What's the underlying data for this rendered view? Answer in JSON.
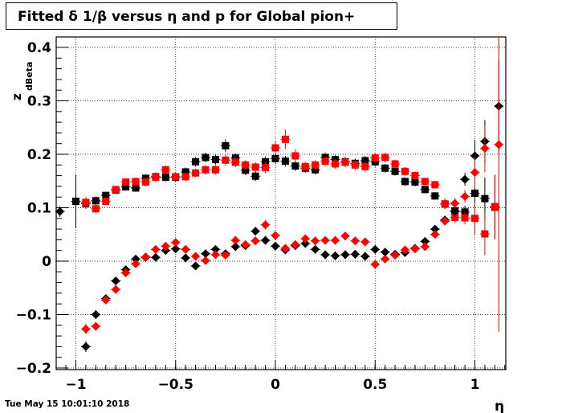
{
  "title": "Fitted δ 1/β versus η and p for Global pion+",
  "footer_timestamp": "Tue May 15 10:01:10 2018",
  "chart_data": {
    "type": "scatter",
    "title": "Fitted δ 1/β versus η and p for Global pion+",
    "xlabel": "η",
    "ylabel": "z",
    "ylabel_subscript": "dBeta",
    "xlim": [
      -1.1,
      1.15
    ],
    "ylim": [
      -0.2,
      0.4
    ],
    "grid": true,
    "x_ticks": [
      {
        "v": -1,
        "label": "−1"
      },
      {
        "v": -0.5,
        "label": "−0.5"
      },
      {
        "v": 0,
        "label": "0"
      },
      {
        "v": 0.5,
        "label": "0.5"
      },
      {
        "v": 1,
        "label": "1"
      }
    ],
    "y_ticks": [
      {
        "v": -0.2,
        "label": "−0.2"
      },
      {
        "v": -0.1,
        "label": "−0.1"
      },
      {
        "v": 0,
        "label": "0"
      },
      {
        "v": 0.1,
        "label": "0.1"
      },
      {
        "v": 0.2,
        "label": "0.2"
      },
      {
        "v": 0.3,
        "label": "0.3"
      },
      {
        "v": 0.4,
        "label": "0.4"
      }
    ],
    "series": [
      {
        "color": "#000000",
        "marker": "square",
        "points": [
          {
            "x": -1.0,
            "y": 0.112,
            "e": 0.05
          },
          {
            "x": -0.95,
            "y": 0.108,
            "e": 0.01
          },
          {
            "x": -0.9,
            "y": 0.113,
            "e": 0.008
          },
          {
            "x": -0.85,
            "y": 0.123,
            "e": 0.007
          },
          {
            "x": -0.8,
            "y": 0.133,
            "e": 0.007
          },
          {
            "x": -0.75,
            "y": 0.139,
            "e": 0.007
          },
          {
            "x": -0.7,
            "y": 0.137,
            "e": 0.007
          },
          {
            "x": -0.65,
            "y": 0.155,
            "e": 0.008
          },
          {
            "x": -0.6,
            "y": 0.158,
            "e": 0.008
          },
          {
            "x": -0.55,
            "y": 0.157,
            "e": 0.008
          },
          {
            "x": -0.5,
            "y": 0.157,
            "e": 0.008
          },
          {
            "x": -0.45,
            "y": 0.167,
            "e": 0.008
          },
          {
            "x": -0.4,
            "y": 0.186,
            "e": 0.009
          },
          {
            "x": -0.35,
            "y": 0.194,
            "e": 0.009
          },
          {
            "x": -0.3,
            "y": 0.19,
            "e": 0.009
          },
          {
            "x": -0.25,
            "y": 0.216,
            "e": 0.012
          },
          {
            "x": -0.2,
            "y": 0.193,
            "e": 0.009
          },
          {
            "x": -0.15,
            "y": 0.17,
            "e": 0.009
          },
          {
            "x": -0.1,
            "y": 0.159,
            "e": 0.009
          },
          {
            "x": -0.05,
            "y": 0.186,
            "e": 0.01
          },
          {
            "x": 0.0,
            "y": 0.192,
            "e": 0.01
          },
          {
            "x": 0.05,
            "y": 0.187,
            "e": 0.01
          },
          {
            "x": 0.1,
            "y": 0.178,
            "e": 0.009
          },
          {
            "x": 0.15,
            "y": 0.174,
            "e": 0.009
          },
          {
            "x": 0.2,
            "y": 0.171,
            "e": 0.009
          },
          {
            "x": 0.25,
            "y": 0.194,
            "e": 0.009
          },
          {
            "x": 0.3,
            "y": 0.19,
            "e": 0.009
          },
          {
            "x": 0.35,
            "y": 0.186,
            "e": 0.009
          },
          {
            "x": 0.4,
            "y": 0.183,
            "e": 0.009
          },
          {
            "x": 0.45,
            "y": 0.188,
            "e": 0.009
          },
          {
            "x": 0.5,
            "y": 0.186,
            "e": 0.009
          },
          {
            "x": 0.55,
            "y": 0.174,
            "e": 0.008
          },
          {
            "x": 0.6,
            "y": 0.168,
            "e": 0.008
          },
          {
            "x": 0.65,
            "y": 0.149,
            "e": 0.008
          },
          {
            "x": 0.7,
            "y": 0.148,
            "e": 0.008
          },
          {
            "x": 0.75,
            "y": 0.134,
            "e": 0.007
          },
          {
            "x": 0.8,
            "y": 0.122,
            "e": 0.007
          },
          {
            "x": 0.85,
            "y": 0.107,
            "e": 0.01
          },
          {
            "x": 0.9,
            "y": 0.094,
            "e": 0.01
          },
          {
            "x": 0.95,
            "y": 0.092,
            "e": 0.012
          },
          {
            "x": 1.0,
            "y": 0.127,
            "e": 0.03
          },
          {
            "x": 1.05,
            "y": 0.117,
            "e": 0.04
          },
          {
            "x": 1.1,
            "y": 0.101,
            "e": 0.06
          }
        ]
      },
      {
        "color": "#ff0000",
        "marker": "square",
        "points": [
          {
            "x": -0.95,
            "y": 0.11,
            "e": 0.01
          },
          {
            "x": -0.9,
            "y": 0.098,
            "e": 0.008
          },
          {
            "x": -0.85,
            "y": 0.112,
            "e": 0.007
          },
          {
            "x": -0.8,
            "y": 0.134,
            "e": 0.007
          },
          {
            "x": -0.75,
            "y": 0.148,
            "e": 0.007
          },
          {
            "x": -0.7,
            "y": 0.149,
            "e": 0.007
          },
          {
            "x": -0.65,
            "y": 0.148,
            "e": 0.008
          },
          {
            "x": -0.6,
            "y": 0.157,
            "e": 0.008
          },
          {
            "x": -0.55,
            "y": 0.171,
            "e": 0.008
          },
          {
            "x": -0.5,
            "y": 0.158,
            "e": 0.008
          },
          {
            "x": -0.45,
            "y": 0.158,
            "e": 0.008
          },
          {
            "x": -0.4,
            "y": 0.165,
            "e": 0.008
          },
          {
            "x": -0.35,
            "y": 0.171,
            "e": 0.009
          },
          {
            "x": -0.3,
            "y": 0.171,
            "e": 0.009
          },
          {
            "x": -0.25,
            "y": 0.189,
            "e": 0.01
          },
          {
            "x": -0.2,
            "y": 0.185,
            "e": 0.009
          },
          {
            "x": -0.15,
            "y": 0.18,
            "e": 0.009
          },
          {
            "x": -0.1,
            "y": 0.176,
            "e": 0.009
          },
          {
            "x": -0.05,
            "y": 0.175,
            "e": 0.01
          },
          {
            "x": 0.0,
            "y": 0.212,
            "e": 0.012
          },
          {
            "x": 0.05,
            "y": 0.228,
            "e": 0.018
          },
          {
            "x": 0.1,
            "y": 0.197,
            "e": 0.012
          },
          {
            "x": 0.15,
            "y": 0.177,
            "e": 0.009
          },
          {
            "x": 0.2,
            "y": 0.18,
            "e": 0.009
          },
          {
            "x": 0.25,
            "y": 0.187,
            "e": 0.009
          },
          {
            "x": 0.3,
            "y": 0.182,
            "e": 0.009
          },
          {
            "x": 0.35,
            "y": 0.185,
            "e": 0.009
          },
          {
            "x": 0.4,
            "y": 0.18,
            "e": 0.009
          },
          {
            "x": 0.45,
            "y": 0.177,
            "e": 0.009
          },
          {
            "x": 0.5,
            "y": 0.193,
            "e": 0.009
          },
          {
            "x": 0.55,
            "y": 0.194,
            "e": 0.009
          },
          {
            "x": 0.6,
            "y": 0.182,
            "e": 0.008
          },
          {
            "x": 0.65,
            "y": 0.168,
            "e": 0.008
          },
          {
            "x": 0.7,
            "y": 0.16,
            "e": 0.008
          },
          {
            "x": 0.75,
            "y": 0.149,
            "e": 0.007
          },
          {
            "x": 0.8,
            "y": 0.143,
            "e": 0.007
          },
          {
            "x": 0.85,
            "y": 0.107,
            "e": 0.01
          },
          {
            "x": 0.9,
            "y": 0.082,
            "e": 0.01
          },
          {
            "x": 0.95,
            "y": 0.081,
            "e": 0.012
          },
          {
            "x": 1.0,
            "y": 0.08,
            "e": 0.03
          },
          {
            "x": 1.05,
            "y": 0.051,
            "e": 0.04
          },
          {
            "x": 1.1,
            "y": 0.102,
            "e": 0.06
          }
        ]
      },
      {
        "color": "#000000",
        "marker": "diamond",
        "points": [
          {
            "x": -1.08,
            "y": 0.093,
            "e": 0.01
          },
          {
            "x": -1.0,
            "y": 0.112,
            "e": 0.01
          },
          {
            "x": -0.95,
            "y": -0.16,
            "e": 0.01
          },
          {
            "x": -0.9,
            "y": -0.1,
            "e": 0.008
          },
          {
            "x": -0.85,
            "y": -0.07,
            "e": 0.007
          },
          {
            "x": -0.8,
            "y": -0.037,
            "e": 0.007
          },
          {
            "x": -0.75,
            "y": -0.016,
            "e": 0.007
          },
          {
            "x": -0.7,
            "y": 0.004,
            "e": 0.007
          },
          {
            "x": -0.65,
            "y": 0.007,
            "e": 0.007
          },
          {
            "x": -0.6,
            "y": 0.007,
            "e": 0.007
          },
          {
            "x": -0.55,
            "y": 0.02,
            "e": 0.007
          },
          {
            "x": -0.5,
            "y": 0.023,
            "e": 0.007
          },
          {
            "x": -0.45,
            "y": 0.006,
            "e": 0.007
          },
          {
            "x": -0.4,
            "y": -0.009,
            "e": 0.007
          },
          {
            "x": -0.35,
            "y": 0.014,
            "e": 0.007
          },
          {
            "x": -0.3,
            "y": 0.022,
            "e": 0.007
          },
          {
            "x": -0.25,
            "y": 0.014,
            "e": 0.007
          },
          {
            "x": -0.2,
            "y": 0.027,
            "e": 0.008
          },
          {
            "x": -0.15,
            "y": 0.029,
            "e": 0.008
          },
          {
            "x": -0.1,
            "y": 0.056,
            "e": 0.008
          },
          {
            "x": -0.05,
            "y": 0.039,
            "e": 0.008
          },
          {
            "x": 0.0,
            "y": 0.028,
            "e": 0.008
          },
          {
            "x": 0.05,
            "y": 0.021,
            "e": 0.008
          },
          {
            "x": 0.1,
            "y": 0.029,
            "e": 0.008
          },
          {
            "x": 0.15,
            "y": 0.033,
            "e": 0.008
          },
          {
            "x": 0.2,
            "y": 0.022,
            "e": 0.008
          },
          {
            "x": 0.25,
            "y": 0.012,
            "e": 0.008
          },
          {
            "x": 0.3,
            "y": 0.01,
            "e": 0.008
          },
          {
            "x": 0.35,
            "y": 0.012,
            "e": 0.008
          },
          {
            "x": 0.4,
            "y": 0.013,
            "e": 0.008
          },
          {
            "x": 0.45,
            "y": 0.009,
            "e": 0.008
          },
          {
            "x": 0.5,
            "y": 0.022,
            "e": 0.008
          },
          {
            "x": 0.55,
            "y": 0.017,
            "e": 0.007
          },
          {
            "x": 0.6,
            "y": 0.013,
            "e": 0.007
          },
          {
            "x": 0.65,
            "y": 0.016,
            "e": 0.007
          },
          {
            "x": 0.7,
            "y": 0.024,
            "e": 0.007
          },
          {
            "x": 0.75,
            "y": 0.037,
            "e": 0.007
          },
          {
            "x": 0.8,
            "y": 0.06,
            "e": 0.007
          },
          {
            "x": 0.85,
            "y": 0.077,
            "e": 0.008
          },
          {
            "x": 0.9,
            "y": 0.093,
            "e": 0.01
          },
          {
            "x": 0.95,
            "y": 0.153,
            "e": 0.012
          },
          {
            "x": 1.0,
            "y": 0.197,
            "e": 0.03
          },
          {
            "x": 1.05,
            "y": 0.224,
            "e": 0.04
          },
          {
            "x": 1.12,
            "y": 0.29,
            "e": 0.085
          }
        ]
      },
      {
        "color": "#ff0000",
        "marker": "diamond",
        "points": [
          {
            "x": -0.95,
            "y": -0.127,
            "e": 0.01
          },
          {
            "x": -0.9,
            "y": -0.122,
            "e": 0.008
          },
          {
            "x": -0.85,
            "y": -0.073,
            "e": 0.007
          },
          {
            "x": -0.8,
            "y": -0.053,
            "e": 0.007
          },
          {
            "x": -0.75,
            "y": -0.022,
            "e": 0.007
          },
          {
            "x": -0.7,
            "y": -0.005,
            "e": 0.007
          },
          {
            "x": -0.65,
            "y": 0.008,
            "e": 0.007
          },
          {
            "x": -0.6,
            "y": 0.022,
            "e": 0.007
          },
          {
            "x": -0.55,
            "y": 0.028,
            "e": 0.007
          },
          {
            "x": -0.5,
            "y": 0.035,
            "e": 0.007
          },
          {
            "x": -0.45,
            "y": 0.022,
            "e": 0.007
          },
          {
            "x": -0.4,
            "y": 0.009,
            "e": 0.007
          },
          {
            "x": -0.35,
            "y": 0.001,
            "e": 0.007
          },
          {
            "x": -0.3,
            "y": 0.012,
            "e": 0.007
          },
          {
            "x": -0.25,
            "y": 0.011,
            "e": 0.007
          },
          {
            "x": -0.2,
            "y": 0.039,
            "e": 0.008
          },
          {
            "x": -0.15,
            "y": 0.031,
            "e": 0.008
          },
          {
            "x": -0.1,
            "y": 0.038,
            "e": 0.008
          },
          {
            "x": -0.05,
            "y": 0.068,
            "e": 0.009
          },
          {
            "x": 0.0,
            "y": 0.048,
            "e": 0.008
          },
          {
            "x": 0.05,
            "y": 0.024,
            "e": 0.008
          },
          {
            "x": 0.1,
            "y": 0.031,
            "e": 0.008
          },
          {
            "x": 0.15,
            "y": 0.042,
            "e": 0.008
          },
          {
            "x": 0.2,
            "y": 0.038,
            "e": 0.008
          },
          {
            "x": 0.25,
            "y": 0.039,
            "e": 0.008
          },
          {
            "x": 0.3,
            "y": 0.039,
            "e": 0.008
          },
          {
            "x": 0.35,
            "y": 0.047,
            "e": 0.008
          },
          {
            "x": 0.4,
            "y": 0.038,
            "e": 0.008
          },
          {
            "x": 0.45,
            "y": 0.036,
            "e": 0.008
          },
          {
            "x": 0.5,
            "y": -0.006,
            "e": 0.008
          },
          {
            "x": 0.55,
            "y": 0.004,
            "e": 0.007
          },
          {
            "x": 0.6,
            "y": 0.011,
            "e": 0.007
          },
          {
            "x": 0.65,
            "y": 0.021,
            "e": 0.007
          },
          {
            "x": 0.7,
            "y": 0.023,
            "e": 0.007
          },
          {
            "x": 0.75,
            "y": 0.027,
            "e": 0.007
          },
          {
            "x": 0.8,
            "y": 0.05,
            "e": 0.007
          },
          {
            "x": 0.85,
            "y": 0.075,
            "e": 0.008
          },
          {
            "x": 0.9,
            "y": 0.108,
            "e": 0.01
          },
          {
            "x": 0.95,
            "y": 0.121,
            "e": 0.012
          },
          {
            "x": 1.0,
            "y": 0.166,
            "e": 0.03
          },
          {
            "x": 1.05,
            "y": 0.211,
            "e": 0.045
          },
          {
            "x": 1.12,
            "y": 0.218,
            "e": 0.35
          }
        ]
      }
    ]
  }
}
